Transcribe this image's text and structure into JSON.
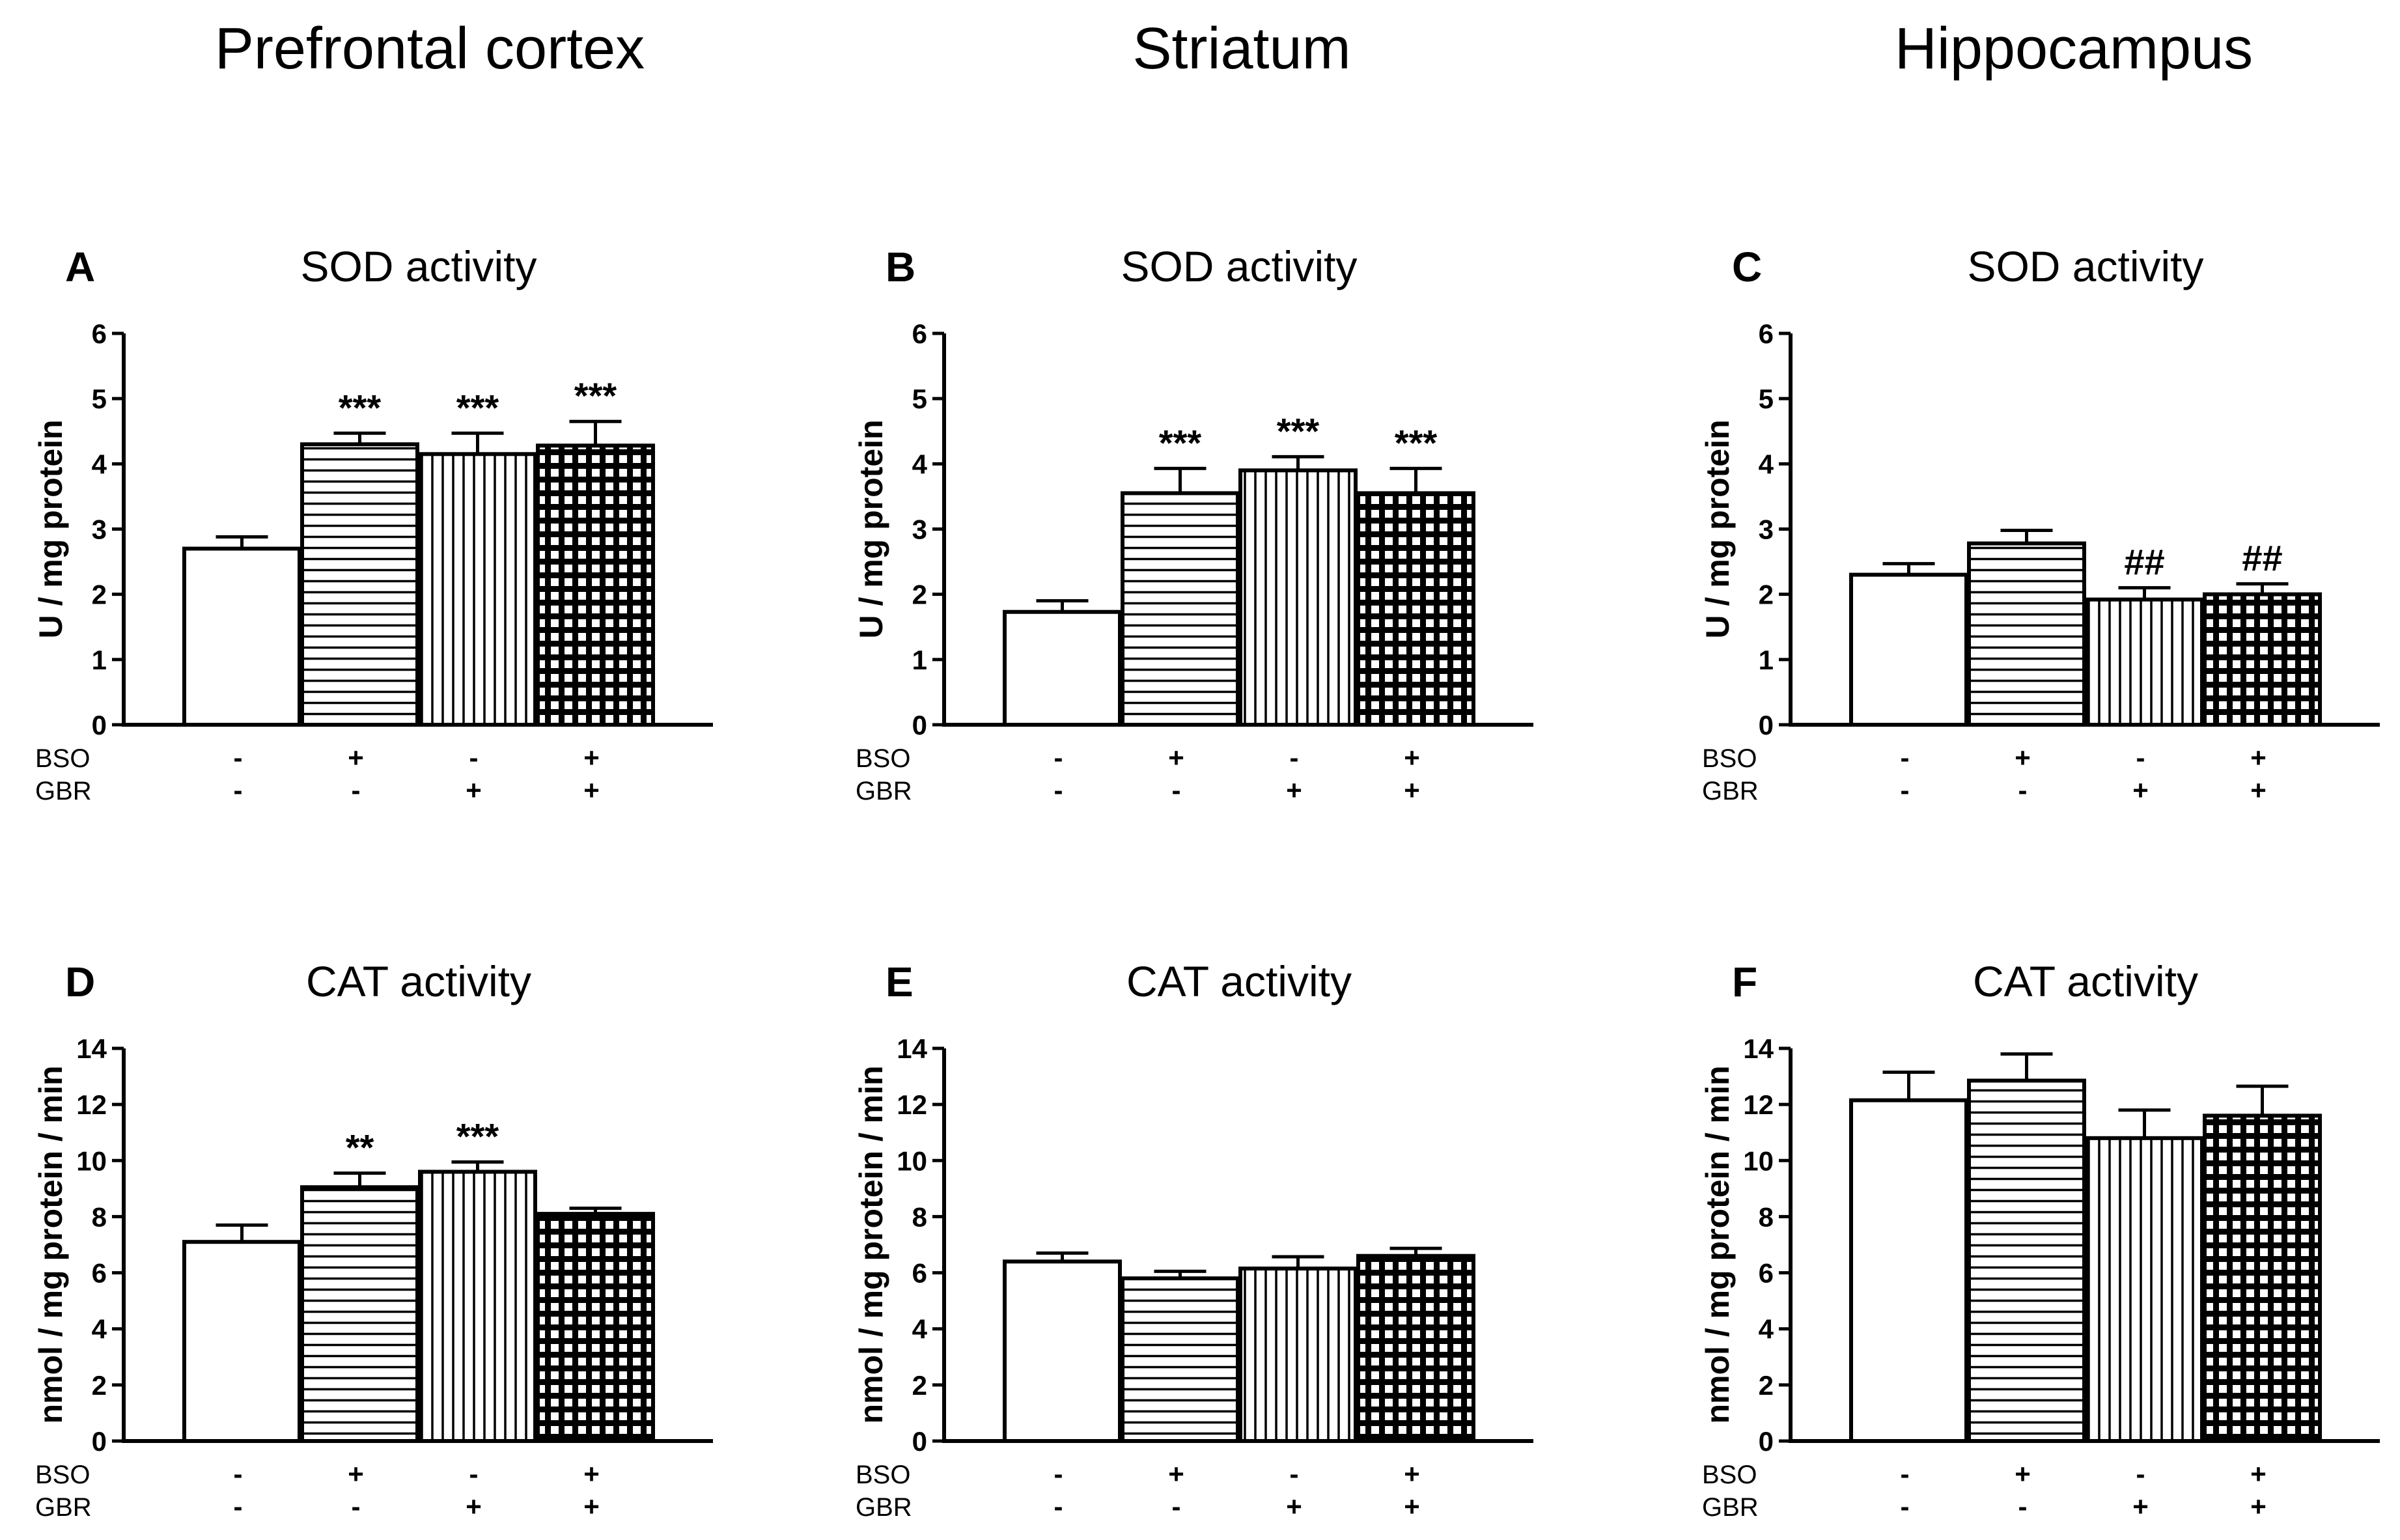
{
  "region_titles": [
    "Prefrontal cortex",
    "Striatum",
    "Hippocampus"
  ],
  "treatment_rows": [
    {
      "label": "BSO",
      "signs": [
        "-",
        "+",
        "-",
        "+"
      ]
    },
    {
      "label": "GBR",
      "signs": [
        "-",
        "-",
        "+",
        "+"
      ]
    }
  ],
  "group_patterns": [
    "none",
    "horizontal",
    "vertical",
    "grid"
  ],
  "chart_data": [
    {
      "id": "A",
      "type": "bar",
      "region": "Prefrontal cortex",
      "title": "SOD activity",
      "ylabel": "U / mg protein",
      "ylim": [
        0,
        6
      ],
      "yticks": [
        0,
        1,
        2,
        3,
        4,
        5,
        6
      ],
      "values": [
        2.7,
        4.3,
        4.15,
        4.28
      ],
      "errors": [
        0.18,
        0.17,
        0.32,
        0.37
      ],
      "annotations": [
        "",
        "***",
        "***",
        "***"
      ]
    },
    {
      "id": "B",
      "type": "bar",
      "region": "Striatum",
      "title": "SOD activity",
      "ylabel": "U / mg protein",
      "ylim": [
        0,
        6
      ],
      "yticks": [
        0,
        1,
        2,
        3,
        4,
        5,
        6
      ],
      "values": [
        1.73,
        3.55,
        3.9,
        3.55
      ],
      "errors": [
        0.17,
        0.38,
        0.21,
        0.38
      ],
      "annotations": [
        "",
        "***",
        "***",
        "***"
      ]
    },
    {
      "id": "C",
      "type": "bar",
      "region": "Hippocampus",
      "title": "SOD activity",
      "ylabel": "U / mg protein",
      "ylim": [
        0,
        6
      ],
      "yticks": [
        0,
        1,
        2,
        3,
        4,
        5,
        6
      ],
      "values": [
        2.3,
        2.78,
        1.92,
        2.0
      ],
      "errors": [
        0.17,
        0.2,
        0.18,
        0.16
      ],
      "annotations": [
        "",
        "",
        "##",
        "##"
      ]
    },
    {
      "id": "D",
      "type": "bar",
      "region": "Prefrontal cortex",
      "title": "CAT activity",
      "ylabel": "nmol / mg protein / min",
      "ylim": [
        0,
        14
      ],
      "yticks": [
        0,
        2,
        4,
        6,
        8,
        10,
        12,
        14
      ],
      "values": [
        7.1,
        9.05,
        9.6,
        8.1
      ],
      "errors": [
        0.6,
        0.5,
        0.35,
        0.2
      ],
      "annotations": [
        "",
        "**",
        "***",
        ""
      ]
    },
    {
      "id": "E",
      "type": "bar",
      "region": "Striatum",
      "title": "CAT activity",
      "ylabel": "nmol / mg protein / min",
      "ylim": [
        0,
        14
      ],
      "yticks": [
        0,
        2,
        4,
        6,
        8,
        10,
        12,
        14
      ],
      "values": [
        6.4,
        5.8,
        6.15,
        6.6
      ],
      "errors": [
        0.3,
        0.25,
        0.42,
        0.27
      ],
      "annotations": [
        "",
        "",
        "",
        ""
      ]
    },
    {
      "id": "F",
      "type": "bar",
      "region": "Hippocampus",
      "title": "CAT activity",
      "ylabel": "nmol / mg protein / min",
      "ylim": [
        0,
        14
      ],
      "yticks": [
        0,
        2,
        4,
        6,
        8,
        10,
        12,
        14
      ],
      "values": [
        12.15,
        12.85,
        10.8,
        11.6
      ],
      "errors": [
        1.0,
        0.95,
        1.0,
        1.05
      ],
      "annotations": [
        "",
        "",
        "",
        ""
      ]
    }
  ]
}
